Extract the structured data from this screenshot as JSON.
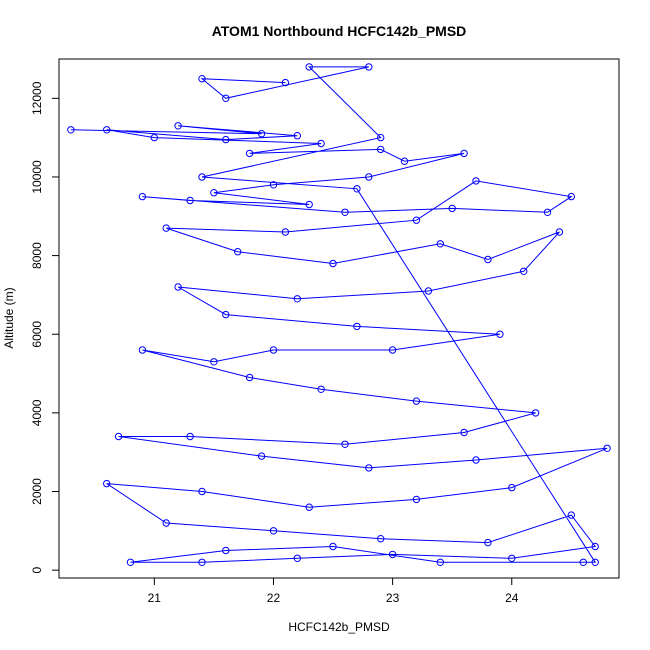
{
  "chart_data": {
    "type": "line",
    "title": "ATOM1 Northbound HCFC142b_PMSD",
    "xlabel": "HCFC142b_PMSD",
    "ylabel": "Altitude (m)",
    "xlim": [
      20.2,
      24.9
    ],
    "ylim": [
      -200,
      13000
    ],
    "xticks": [
      21,
      22,
      23,
      24
    ],
    "yticks": [
      0,
      2000,
      4000,
      6000,
      8000,
      10000,
      12000
    ],
    "grid": false,
    "series_color": "#0000ff",
    "marker": "open-circle",
    "series": [
      {
        "values_description": "approximate (x, altitude) points read from the plot",
        "points": [
          [
            20.3,
            11200
          ],
          [
            21.9,
            11100
          ],
          [
            21.2,
            11300
          ],
          [
            22.2,
            11050
          ],
          [
            21.6,
            10950
          ],
          [
            20.6,
            11200
          ],
          [
            21.0,
            11000
          ],
          [
            22.4,
            10850
          ],
          [
            21.8,
            10600
          ],
          [
            22.9,
            10700
          ],
          [
            23.1,
            10400
          ],
          [
            23.6,
            10600
          ],
          [
            22.8,
            10000
          ],
          [
            22.0,
            9800
          ],
          [
            21.5,
            9600
          ],
          [
            22.3,
            9300
          ],
          [
            21.3,
            9400
          ],
          [
            20.9,
            9500
          ],
          [
            22.6,
            9100
          ],
          [
            23.5,
            9200
          ],
          [
            24.3,
            9100
          ],
          [
            24.5,
            9500
          ],
          [
            23.7,
            9900
          ],
          [
            23.2,
            8900
          ],
          [
            22.1,
            8600
          ],
          [
            21.1,
            8700
          ],
          [
            21.7,
            8100
          ],
          [
            22.5,
            7800
          ],
          [
            23.4,
            8300
          ],
          [
            23.8,
            7900
          ],
          [
            24.4,
            8600
          ],
          [
            24.1,
            7600
          ],
          [
            23.3,
            7100
          ],
          [
            22.2,
            6900
          ],
          [
            21.2,
            7200
          ],
          [
            21.6,
            6500
          ],
          [
            22.7,
            6200
          ],
          [
            23.9,
            6000
          ],
          [
            23.0,
            5600
          ],
          [
            22.0,
            5600
          ],
          [
            21.5,
            5300
          ],
          [
            20.9,
            5600
          ],
          [
            21.8,
            4900
          ],
          [
            22.4,
            4600
          ],
          [
            23.2,
            4300
          ],
          [
            24.2,
            4000
          ],
          [
            23.6,
            3500
          ],
          [
            22.6,
            3200
          ],
          [
            21.3,
            3400
          ],
          [
            20.7,
            3400
          ],
          [
            21.9,
            2900
          ],
          [
            22.8,
            2600
          ],
          [
            23.7,
            2800
          ],
          [
            24.8,
            3100
          ],
          [
            24.0,
            2100
          ],
          [
            23.2,
            1800
          ],
          [
            22.3,
            1600
          ],
          [
            21.4,
            2000
          ],
          [
            20.6,
            2200
          ],
          [
            21.1,
            1200
          ],
          [
            22.0,
            1000
          ],
          [
            22.9,
            800
          ],
          [
            23.8,
            700
          ],
          [
            24.5,
            1400
          ],
          [
            24.7,
            600
          ],
          [
            24.0,
            300
          ],
          [
            23.0,
            400
          ],
          [
            22.2,
            300
          ],
          [
            21.4,
            200
          ],
          [
            20.8,
            200
          ],
          [
            21.6,
            500
          ],
          [
            22.5,
            600
          ],
          [
            23.4,
            200
          ],
          [
            24.6,
            200
          ],
          [
            24.7,
            200
          ],
          [
            22.7,
            9700
          ],
          [
            21.4,
            10000
          ],
          [
            22.9,
            11000
          ],
          [
            22.3,
            12800
          ],
          [
            22.8,
            12800
          ],
          [
            21.6,
            12000
          ],
          [
            21.4,
            12500
          ],
          [
            22.1,
            12400
          ]
        ]
      }
    ]
  }
}
